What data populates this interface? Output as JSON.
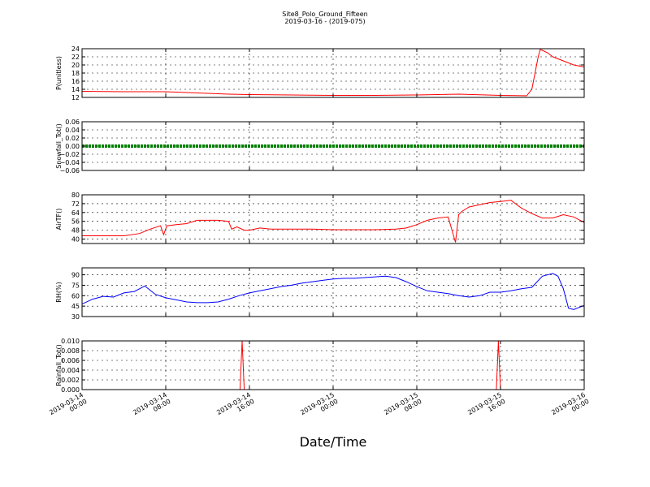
{
  "figure": {
    "title_line1": "Site8_Polo_Ground_Fifteen",
    "title_line2": "2019-03-16 - (2019-075)",
    "xlabel": "Date/Time",
    "x_tick_labels": [
      [
        "2019-03-14",
        "00:00"
      ],
      [
        "2019-03-14",
        "08:00"
      ],
      [
        "2019-03-14",
        "16:00"
      ],
      [
        "2019-03-15",
        "00:00"
      ],
      [
        "2019-03-15",
        "08:00"
      ],
      [
        "2019-03-15",
        "16:00"
      ],
      [
        "2019-03-16",
        "00:00"
      ]
    ],
    "x_range_hours": [
      0,
      48
    ]
  },
  "chart_data": [
    {
      "type": "line",
      "ylabel": "P(unitless)",
      "color": "#ff0000",
      "ylim": [
        12,
        24
      ],
      "yticks": [
        12,
        14,
        16,
        18,
        20,
        22,
        24
      ],
      "ytick_labels": [
        "12",
        "14",
        "16",
        "18",
        "20",
        "22",
        "24"
      ],
      "x_hours": [
        0,
        4,
        8,
        10,
        12,
        14,
        16,
        20,
        24,
        28,
        32,
        36,
        40,
        42.5,
        43,
        43.3,
        43.6,
        43.8,
        44,
        44.5,
        45,
        46,
        47,
        48
      ],
      "values": [
        13.5,
        13.4,
        13.4,
        13.2,
        13.0,
        12.8,
        12.7,
        12.6,
        12.5,
        12.5,
        12.6,
        12.8,
        12.5,
        12.4,
        14.0,
        18.0,
        22.0,
        23.8,
        23.6,
        23.0,
        22.0,
        21.0,
        20.0,
        19.5
      ]
    },
    {
      "type": "line",
      "ylabel": "Snowfall_Tot()",
      "color": "#008000",
      "ylim": [
        -0.06,
        0.06
      ],
      "yticks": [
        -0.06,
        -0.04,
        -0.02,
        0.0,
        0.02,
        0.04,
        0.06
      ],
      "ytick_labels": [
        "−0.06",
        "−0.04",
        "−0.02",
        "0.00",
        "0.02",
        "0.04",
        "0.06"
      ],
      "x_hours": [
        0,
        48
      ],
      "values": [
        0,
        0
      ]
    },
    {
      "type": "line",
      "ylabel": "AirTF()",
      "color": "#ff0000",
      "ylim": [
        36,
        80
      ],
      "yticks": [
        40,
        48,
        56,
        64,
        72,
        80
      ],
      "ytick_labels": [
        "40",
        "48",
        "56",
        "64",
        "72",
        "80"
      ],
      "x_hours": [
        0,
        2,
        4,
        5.5,
        6.5,
        7.5,
        7.8,
        8.1,
        9,
        10,
        11,
        12,
        13,
        14,
        14.3,
        14.8,
        15.5,
        16,
        17,
        18,
        20,
        22,
        24,
        26,
        28,
        30,
        31,
        32,
        33,
        34,
        35,
        35.7,
        36,
        36.3,
        37,
        38,
        39,
        40,
        41,
        42,
        43,
        44,
        45,
        46,
        47,
        48
      ],
      "values": [
        43,
        43,
        43,
        45,
        49,
        52,
        44,
        52,
        53,
        54,
        57,
        57,
        57,
        56,
        49,
        51,
        48,
        48,
        50,
        49,
        49,
        49,
        48.5,
        48.5,
        48.5,
        49,
        50,
        53,
        57,
        59,
        60,
        37,
        62,
        65,
        69,
        71,
        73,
        74,
        75,
        68,
        63,
        59,
        59,
        62,
        60,
        55
      ]
    },
    {
      "type": "line",
      "ylabel": "RH(%)",
      "color": "#0000ff",
      "ylim": [
        30,
        100
      ],
      "yticks": [
        30,
        45,
        60,
        75,
        90
      ],
      "ytick_labels": [
        "30",
        "45",
        "60",
        "75",
        "90"
      ],
      "x_hours": [
        0,
        1,
        2,
        3,
        4,
        5,
        6,
        7,
        8,
        9,
        10,
        11,
        12,
        13,
        14,
        15,
        16,
        17,
        18,
        19,
        20,
        21,
        22,
        23,
        24,
        25,
        26,
        27,
        28,
        29,
        30,
        31,
        32,
        33,
        34,
        35,
        36,
        37,
        38,
        39,
        40,
        41,
        42,
        43,
        44,
        45,
        45.5,
        46,
        46.5,
        47,
        48
      ],
      "values": [
        48,
        55,
        59,
        58,
        64,
        66,
        74,
        62,
        57,
        54,
        51,
        50,
        50,
        51,
        55,
        60,
        64,
        67,
        70,
        73,
        75,
        78,
        80,
        82,
        84,
        85,
        85,
        86,
        87,
        88,
        86,
        80,
        73,
        67,
        65,
        63,
        60,
        58,
        60,
        65,
        65,
        67,
        70,
        72,
        88,
        92,
        88,
        70,
        42,
        40,
        46
      ]
    },
    {
      "type": "line",
      "ylabel": "Rainfall_Tot()",
      "color": "#ff0000",
      "ylim": [
        0,
        0.01
      ],
      "yticks": [
        0,
        0.002,
        0.004,
        0.006,
        0.008,
        0.01
      ],
      "ytick_labels": [
        "0.000",
        "0.002",
        "0.004",
        "0.006",
        "0.008",
        "0.010"
      ],
      "x_hours": [
        0,
        15.1,
        15.3,
        15.5,
        39.6,
        39.8,
        40.0,
        48
      ],
      "values": [
        0,
        0,
        0.01,
        0,
        0,
        0.01,
        0,
        0
      ]
    }
  ]
}
